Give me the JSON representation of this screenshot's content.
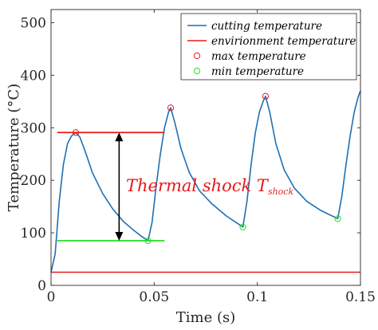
{
  "chart_data": {
    "type": "line",
    "xlabel": "Time (s)",
    "ylabel": "Temperature (°C)",
    "xlim": [
      0,
      0.15
    ],
    "ylim": [
      0,
      525
    ],
    "x_ticks": [
      0,
      0.05,
      0.1,
      0.15
    ],
    "x_tick_labels": [
      "0",
      "0.05",
      "0.1",
      "0.15"
    ],
    "y_ticks": [
      0,
      100,
      200,
      300,
      400,
      500
    ],
    "y_tick_labels": [
      "0",
      "100",
      "200",
      "300",
      "400",
      "500"
    ],
    "grid": false,
    "legend_position": "top-right",
    "legend": [
      {
        "label": "cutting temperature",
        "marker": "line",
        "color": "#1f6fb2"
      },
      {
        "label": "envirionment temperature",
        "marker": "line",
        "color": "#e8191b"
      },
      {
        "label": "max temperature",
        "marker": "circle",
        "color": "#e8191b"
      },
      {
        "label": "min temperature",
        "marker": "circle",
        "color": "#22dd22"
      }
    ],
    "series": [
      {
        "name": "cutting temperature",
        "color": "#1f6fb2",
        "x": [
          0,
          0.002,
          0.004,
          0.006,
          0.008,
          0.01,
          0.012,
          0.014,
          0.017,
          0.02,
          0.025,
          0.03,
          0.035,
          0.04,
          0.044,
          0.047,
          0.049,
          0.051,
          0.053,
          0.055,
          0.057,
          0.058,
          0.06,
          0.063,
          0.067,
          0.072,
          0.078,
          0.085,
          0.093,
          0.095,
          0.097,
          0.099,
          0.101,
          0.103,
          0.104,
          0.106,
          0.109,
          0.113,
          0.118,
          0.124,
          0.131,
          0.139,
          0.141,
          0.143,
          0.145,
          0.147,
          0.149,
          0.15
        ],
        "y": [
          25,
          60,
          160,
          230,
          270,
          285,
          291,
          282,
          250,
          215,
          175,
          145,
          122,
          105,
          93,
          85,
          120,
          190,
          250,
          300,
          330,
          338,
          310,
          260,
          215,
          180,
          155,
          132,
          111,
          160,
          230,
          290,
          330,
          352,
          360,
          330,
          270,
          220,
          185,
          160,
          142,
          127,
          170,
          230,
          285,
          330,
          360,
          370
        ]
      },
      {
        "name": "envirionment temperature",
        "color": "#e8191b",
        "x": [
          0,
          0.15
        ],
        "y": [
          25,
          25
        ]
      }
    ],
    "max_points": [
      {
        "x": 0.012,
        "y": 291
      },
      {
        "x": 0.058,
        "y": 338
      },
      {
        "x": 0.104,
        "y": 360
      }
    ],
    "min_points": [
      {
        "x": 0.047,
        "y": 85
      },
      {
        "x": 0.093,
        "y": 111
      },
      {
        "x": 0.139,
        "y": 127
      }
    ],
    "annotation": {
      "text": "Thermal shock T",
      "subscript": "shock",
      "color": "#e8191b",
      "upper_line": {
        "x": [
          0.003,
          0.055
        ],
        "y": 291,
        "color": "#e8191b"
      },
      "lower_line": {
        "x": [
          0.003,
          0.055
        ],
        "y": 85,
        "color": "#22dd22"
      },
      "arrow": {
        "x": 0.033,
        "y_from": 85,
        "y_to": 291
      }
    }
  }
}
